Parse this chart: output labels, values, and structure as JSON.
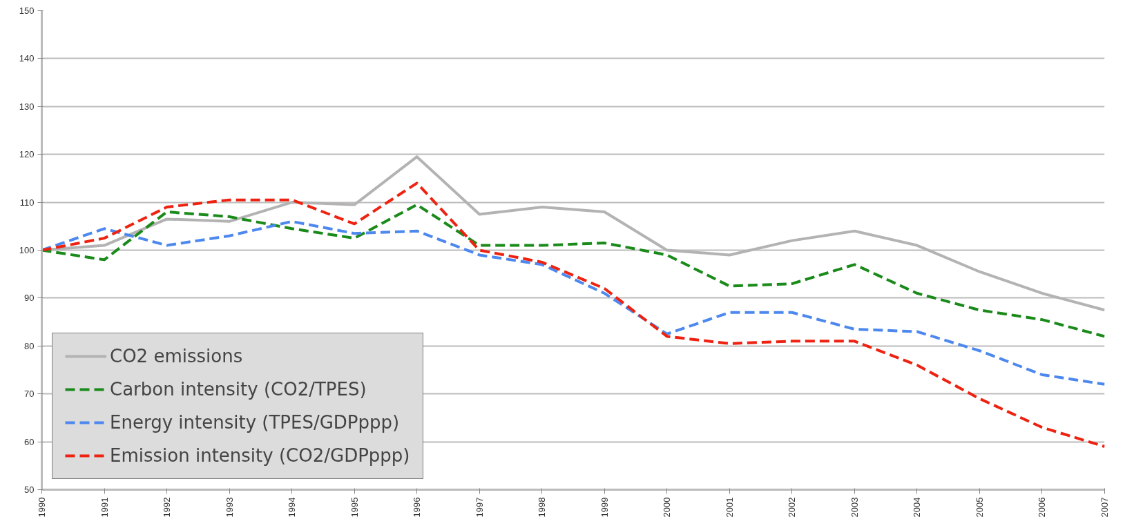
{
  "chart_data": {
    "type": "line",
    "x": [
      1990,
      1991,
      1992,
      1993,
      1994,
      1995,
      1996,
      1997,
      1998,
      1999,
      2000,
      2001,
      2002,
      2003,
      2004,
      2005,
      2006,
      2007
    ],
    "xlim": [
      1990,
      2007
    ],
    "xticks": [
      1990,
      1991,
      1992,
      1993,
      1994,
      1995,
      1996,
      1997,
      1998,
      1999,
      2000,
      2001,
      2002,
      2003,
      2004,
      2005,
      2006,
      2007
    ],
    "ylim": [
      50,
      150
    ],
    "yticks": [
      50,
      60,
      70,
      80,
      90,
      100,
      110,
      120,
      130,
      140,
      150
    ],
    "grid": "y",
    "legend": "bottom left",
    "series": [
      {
        "name": "CO2 emissions",
        "color": "#b3b3b3",
        "line_style": "solid",
        "values": [
          100,
          101,
          106.5,
          106,
          110,
          109.5,
          119.5,
          107.5,
          109,
          108,
          100,
          99,
          102,
          104,
          101,
          95.5,
          91,
          87.5
        ]
      },
      {
        "name": "Carbon intensity (CO2/TPES)",
        "color": "#1a8a1a",
        "line_style": "dashed",
        "values": [
          100,
          98,
          108,
          107,
          104.5,
          102.5,
          109.5,
          101,
          101,
          101.5,
          99,
          92.5,
          93,
          97,
          91,
          87.5,
          85.5,
          82
        ]
      },
      {
        "name": "Energy intensity (TPES/GDPppp)",
        "color": "#4d88ee",
        "line_style": "dashed",
        "values": [
          100,
          104.5,
          101,
          103,
          106,
          103.5,
          104,
          99,
          97,
          91,
          82.5,
          87,
          87,
          83.5,
          83,
          79,
          74,
          72
        ]
      },
      {
        "name": "Emission intensity (CO2/GDPppp)",
        "color": "#ee2211",
        "line_style": "dashed",
        "values": [
          100,
          102.5,
          109,
          110.5,
          110.5,
          105.5,
          114,
          100,
          97.5,
          92,
          82,
          80.5,
          81,
          81,
          76,
          69,
          63,
          59
        ]
      }
    ]
  }
}
